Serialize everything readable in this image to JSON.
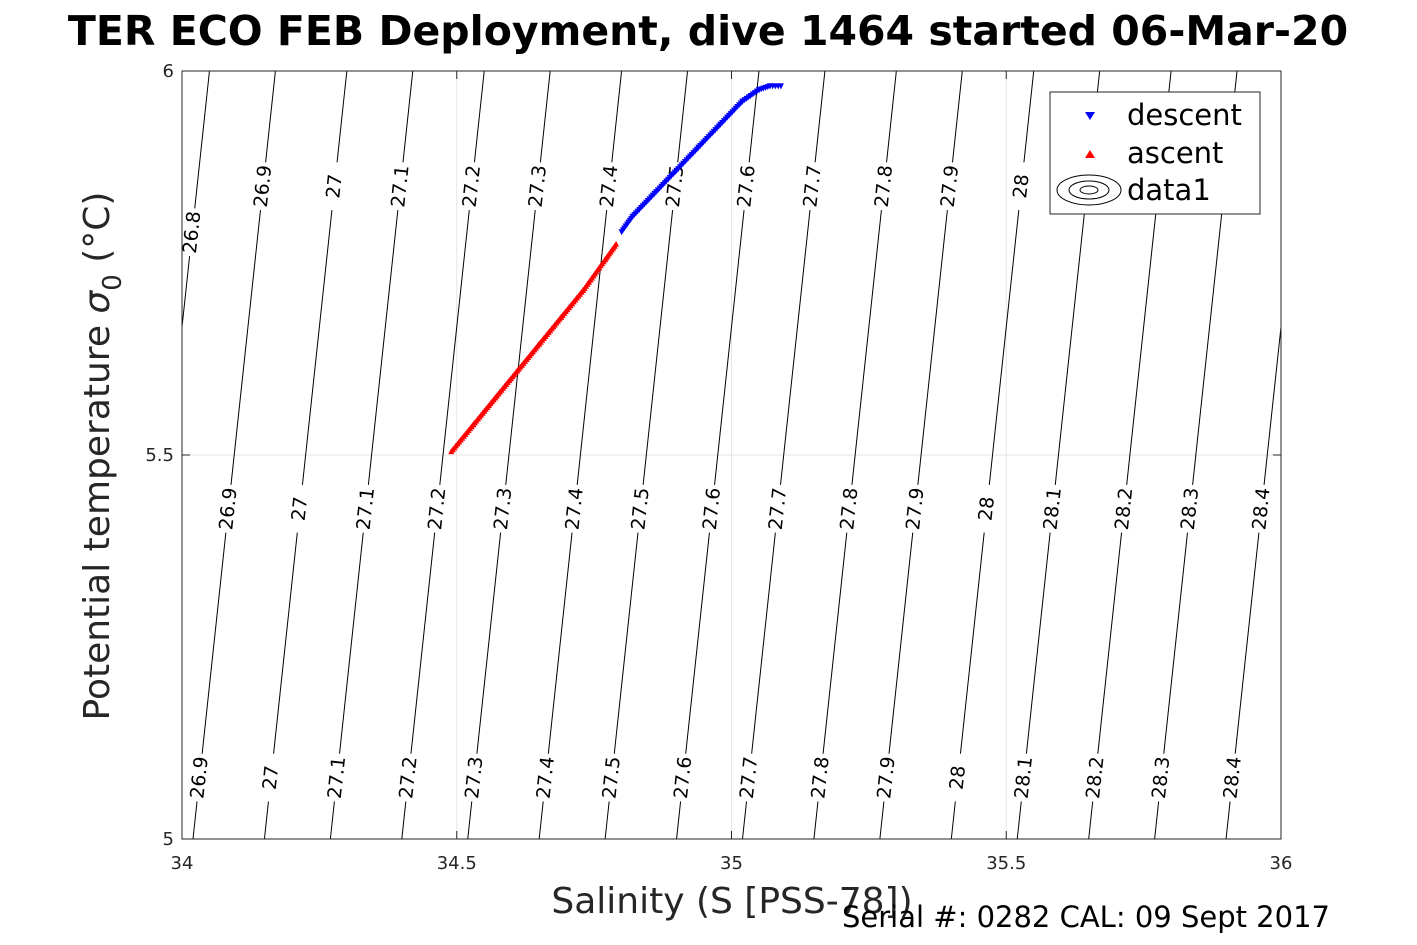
{
  "title": "TER ECO FEB Deployment, dive 1464 started 06-Mar-20",
  "footer": "Serial #: 0282  CAL: 09 Sept 2017",
  "chart_data": {
    "type": "scatter",
    "xlabel": "Salinity (S [PSS-78])",
    "ylabel_main": "Potential temperature ",
    "ylabel_sigma": "σ",
    "ylabel_sub": "0",
    "ylabel_unit": " (°C)",
    "xlim": [
      34,
      36
    ],
    "ylim": [
      5,
      6
    ],
    "xticks": [
      "34",
      "34.5",
      "35",
      "35.5",
      "36"
    ],
    "yticks": [
      "5",
      "5.5",
      "6"
    ],
    "grid": true,
    "legend_position": "top-right",
    "legend": [
      "descent",
      "ascent",
      "data1"
    ],
    "colors": {
      "descent": "#0000ff",
      "ascent": "#ff0000",
      "contour": "#000000",
      "grid": "#e6e6e6",
      "axis": "#262626"
    },
    "series": [
      {
        "name": "descent",
        "marker": "triangle-down",
        "segments": [
          {
            "x": [
              34.8,
              34.82,
              34.86,
              34.9,
              34.94,
              34.98,
              35.02,
              35.05,
              35.07,
              35.09
            ],
            "y": [
              5.79,
              5.81,
              5.84,
              5.87,
              5.9,
              5.93,
              5.96,
              5.975,
              5.98,
              5.98
            ]
          }
        ]
      },
      {
        "name": "ascent",
        "marker": "triangle-up",
        "segments": [
          {
            "x": [
              34.49,
              34.53,
              34.57,
              34.61,
              34.65,
              34.69,
              34.73,
              34.77,
              34.79
            ],
            "y": [
              5.505,
              5.54,
              5.575,
              5.61,
              5.645,
              5.68,
              5.715,
              5.755,
              5.775
            ]
          }
        ]
      }
    ],
    "contours": {
      "name": "data1",
      "lines": [
        {
          "label": "26.8",
          "x_at_y5": 33.9,
          "x_at_y6": 34.05
        },
        {
          "label": "26.9",
          "x_at_y5": 34.02,
          "x_at_y6": 34.17
        },
        {
          "label": "27",
          "x_at_y5": 34.15,
          "x_at_y6": 34.3
        },
        {
          "label": "27.1",
          "x_at_y5": 34.27,
          "x_at_y6": 34.42
        },
        {
          "label": "27.2",
          "x_at_y5": 34.4,
          "x_at_y6": 34.55
        },
        {
          "label": "27.3",
          "x_at_y5": 34.52,
          "x_at_y6": 34.67
        },
        {
          "label": "27.4",
          "x_at_y5": 34.65,
          "x_at_y6": 34.8
        },
        {
          "label": "27.5",
          "x_at_y5": 34.77,
          "x_at_y6": 34.92
        },
        {
          "label": "27.6",
          "x_at_y5": 34.9,
          "x_at_y6": 35.05
        },
        {
          "label": "27.7",
          "x_at_y5": 35.02,
          "x_at_y6": 35.17
        },
        {
          "label": "27.8",
          "x_at_y5": 35.15,
          "x_at_y6": 35.3
        },
        {
          "label": "27.9",
          "x_at_y5": 35.27,
          "x_at_y6": 35.42
        },
        {
          "label": "28",
          "x_at_y5": 35.4,
          "x_at_y6": 35.55
        },
        {
          "label": "28.1",
          "x_at_y5": 35.52,
          "x_at_y6": 35.67
        },
        {
          "label": "28.2",
          "x_at_y5": 35.65,
          "x_at_y6": 35.8
        },
        {
          "label": "28.3",
          "x_at_y5": 35.77,
          "x_at_y6": 35.92
        },
        {
          "label": "28.4",
          "x_at_y5": 35.9,
          "x_at_y6": 36.05
        }
      ],
      "label_rows": [
        {
          "y": 5.08,
          "labels": [
            "26.9",
            "27",
            "27.1",
            "27.2",
            "27.3",
            "27.4",
            "27.5",
            "27.6",
            "27.7",
            "27.8",
            "27.9",
            "28",
            "28.1",
            "28.2",
            "28.3",
            "28.4"
          ]
        },
        {
          "y": 5.43,
          "labels": [
            "26.9",
            "27",
            "27.1",
            "27.2",
            "27.3",
            "27.4",
            "27.5",
            "27.6",
            "27.7",
            "27.8",
            "27.9",
            "28",
            "28.1",
            "28.2",
            "28.3",
            "28.4"
          ]
        },
        {
          "y": 5.85,
          "labels": [
            "26.9",
            "27",
            "27.1",
            "27.2",
            "27.3",
            "27.4",
            "27.5",
            "27.6",
            "27.7",
            "27.8",
            "27.9",
            "28"
          ]
        },
        {
          "y": 5.79,
          "labels": [
            "26.8"
          ]
        }
      ]
    }
  }
}
